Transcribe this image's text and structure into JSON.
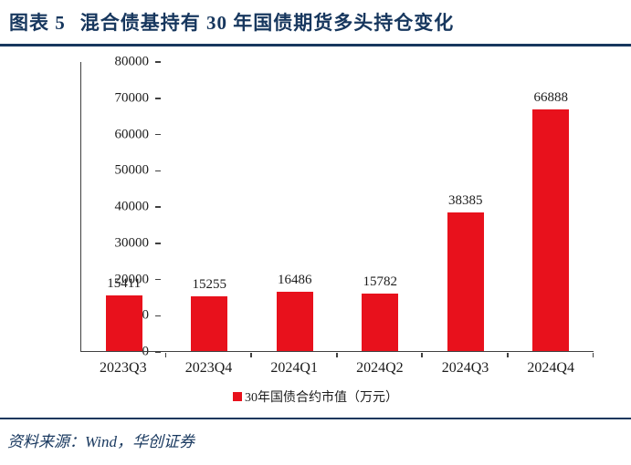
{
  "header": {
    "figure_label": "图表 5",
    "title": "混合债基持有 30 年国债期货多头持仓变化"
  },
  "chart_data": {
    "type": "bar",
    "title": "混合债基持有 30 年国债期货多头持仓变化",
    "categories": [
      "2023Q3",
      "2023Q4",
      "2024Q1",
      "2024Q2",
      "2024Q3",
      "2024Q4"
    ],
    "values": [
      15411,
      15255,
      16486,
      15782,
      38385,
      66888
    ],
    "legend": "30年国债合约市值（万元）",
    "legend_position": "bottom",
    "xlabel": "",
    "ylabel": "",
    "ylim": [
      0,
      80000
    ],
    "yticks": [
      0,
      10000,
      20000,
      30000,
      40000,
      50000,
      60000,
      70000,
      80000
    ],
    "grid": false,
    "bar_color": "#e8111c"
  },
  "footer": {
    "source": "资料来源：Wind，华创证券"
  },
  "colors": {
    "accent_navy": "#17375e",
    "bar_red": "#e8111c",
    "axis_black": "#404040"
  }
}
